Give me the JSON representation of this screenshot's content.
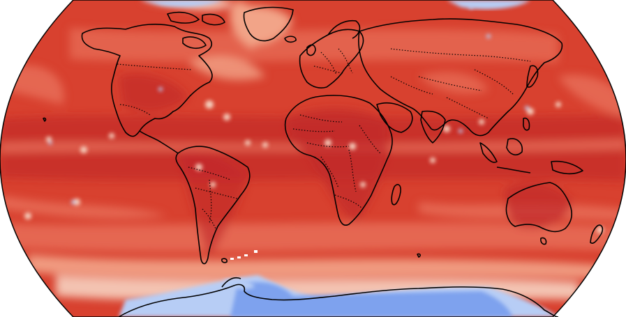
{
  "map": {
    "projection": "robinson",
    "field_colormap": "coolwarm",
    "ocean_field_color": "#d8412f",
    "colors": {
      "dark_red": "#c0282a",
      "red": "#d8412f",
      "light_red": "#e8705a",
      "salmon": "#f2a488",
      "pale": "#f6d2c0",
      "light_blue": "#b7cdf5",
      "blue": "#7ea2ee",
      "coast": "#000000"
    },
    "coastlines": "solid",
    "country_borders": "dotted"
  }
}
